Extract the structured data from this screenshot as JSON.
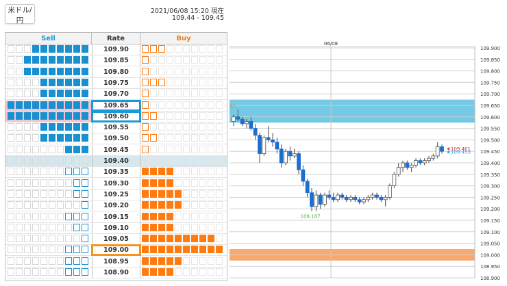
{
  "header": {
    "pair_label": "米ドル/円",
    "timestamp": "2021/06/08 15:20 現在",
    "range": "109.44 - 109.45"
  },
  "order_book": {
    "columns": {
      "sell": "Sell",
      "rate": "Rate",
      "buy": "Buy"
    },
    "rows": [
      {
        "rate": "109.90",
        "sell": 7,
        "buy": 3,
        "sell_open": 0,
        "buy_open": 3
      },
      {
        "rate": "109.85",
        "sell": 8,
        "buy": 1,
        "sell_open": 0,
        "buy_open": 1
      },
      {
        "rate": "109.80",
        "sell": 8,
        "buy": 1,
        "sell_open": 0,
        "buy_open": 1
      },
      {
        "rate": "109.75",
        "sell": 6,
        "buy": 3,
        "sell_open": 0,
        "buy_open": 3
      },
      {
        "rate": "109.70",
        "sell": 6,
        "buy": 1,
        "sell_open": 0,
        "buy_open": 1
      },
      {
        "rate": "109.65",
        "sell": 10,
        "buy": 1,
        "sell_open": 0,
        "buy_open": 1
      },
      {
        "rate": "109.60",
        "sell": 10,
        "buy": 2,
        "sell_open": 0,
        "buy_open": 2
      },
      {
        "rate": "109.55",
        "sell": 6,
        "buy": 1,
        "sell_open": 0,
        "buy_open": 1
      },
      {
        "rate": "109.50",
        "sell": 6,
        "buy": 2,
        "sell_open": 0,
        "buy_open": 2
      },
      {
        "rate": "109.45",
        "sell": 3,
        "buy": 1,
        "sell_open": 0,
        "buy_open": 1
      },
      {
        "rate": "109.40",
        "sell": 0,
        "buy": 0,
        "sell_open": 0,
        "buy_open": 0
      },
      {
        "rate": "109.35",
        "sell": 3,
        "buy": 4,
        "sell_open": 3,
        "buy_open": 0
      },
      {
        "rate": "109.30",
        "sell": 2,
        "buy": 4,
        "sell_open": 2,
        "buy_open": 0
      },
      {
        "rate": "109.25",
        "sell": 2,
        "buy": 5,
        "sell_open": 2,
        "buy_open": 0
      },
      {
        "rate": "109.20",
        "sell": 1,
        "buy": 5,
        "sell_open": 1,
        "buy_open": 0
      },
      {
        "rate": "109.15",
        "sell": 3,
        "buy": 4,
        "sell_open": 3,
        "buy_open": 0
      },
      {
        "rate": "109.10",
        "sell": 2,
        "buy": 4,
        "sell_open": 2,
        "buy_open": 0
      },
      {
        "rate": "109.05",
        "sell": 1,
        "buy": 9,
        "sell_open": 1,
        "buy_open": 0
      },
      {
        "rate": "109.00",
        "sell": 3,
        "buy": 10,
        "sell_open": 3,
        "buy_open": 0
      },
      {
        "rate": "108.95",
        "sell": 3,
        "buy": 5,
        "sell_open": 3,
        "buy_open": 0
      },
      {
        "rate": "108.90",
        "sell": 3,
        "buy": 4,
        "sell_open": 3,
        "buy_open": 0
      }
    ],
    "mid_rate": "109.40",
    "selected_sell_rates": [
      "109.65",
      "109.60"
    ],
    "selected_buy_rate": "109.00",
    "colors": {
      "sell": "#1991d0",
      "buy": "#ff7a0f",
      "mid": "#d6e8ee",
      "pink": "#f2c5cf"
    }
  },
  "chart_data": {
    "type": "candlestick",
    "x_label": "06/08",
    "y_ticks": [
      "109.900",
      "109.850",
      "109.800",
      "109.750",
      "109.700",
      "109.650",
      "109.600",
      "109.550",
      "109.500",
      "109.450",
      "109.400",
      "109.350",
      "109.300",
      "109.250",
      "109.200",
      "109.150",
      "109.100",
      "109.050",
      "109.000",
      "108.950",
      "108.900"
    ],
    "ylim": [
      108.9,
      109.9
    ],
    "bands": [
      {
        "from": 109.575,
        "to": 109.675,
        "color": "#5bbfe2"
      },
      {
        "from": 108.975,
        "to": 109.025,
        "color": "#f89a55"
      }
    ],
    "annotations": {
      "high": "109.487",
      "low": "109.187",
      "ask": "109.461",
      "bid": "109.453"
    },
    "candles": [
      [
        109.58,
        109.61,
        109.56,
        109.6
      ],
      [
        109.6,
        109.63,
        109.58,
        109.59
      ],
      [
        109.59,
        109.6,
        109.56,
        109.57
      ],
      [
        109.57,
        109.59,
        109.55,
        109.58
      ],
      [
        109.58,
        109.6,
        109.54,
        109.55
      ],
      [
        109.55,
        109.57,
        109.5,
        109.52
      ],
      [
        109.52,
        109.53,
        109.4,
        109.44
      ],
      [
        109.44,
        109.52,
        109.43,
        109.51
      ],
      [
        109.51,
        109.56,
        109.49,
        109.5
      ],
      [
        109.5,
        109.53,
        109.47,
        109.49
      ],
      [
        109.49,
        109.51,
        109.44,
        109.46
      ],
      [
        109.46,
        109.48,
        109.38,
        109.4
      ],
      [
        109.4,
        109.46,
        109.39,
        109.45
      ],
      [
        109.45,
        109.47,
        109.41,
        109.43
      ],
      [
        109.43,
        109.46,
        109.42,
        109.44
      ],
      [
        109.44,
        109.45,
        109.35,
        109.37
      ],
      [
        109.37,
        109.39,
        109.3,
        109.32
      ],
      [
        109.32,
        109.33,
        109.25,
        109.27
      ],
      [
        109.27,
        109.29,
        109.19,
        109.21
      ],
      [
        109.21,
        109.28,
        109.19,
        109.26
      ],
      [
        109.26,
        109.27,
        109.2,
        109.22
      ],
      [
        109.22,
        109.27,
        109.21,
        109.26
      ],
      [
        109.26,
        109.28,
        109.24,
        109.25
      ],
      [
        109.25,
        109.27,
        109.23,
        109.24
      ],
      [
        109.24,
        109.27,
        109.23,
        109.26
      ],
      [
        109.26,
        109.27,
        109.24,
        109.25
      ],
      [
        109.25,
        109.26,
        109.23,
        109.24
      ],
      [
        109.24,
        109.26,
        109.23,
        109.25
      ],
      [
        109.25,
        109.26,
        109.23,
        109.24
      ],
      [
        109.24,
        109.25,
        109.22,
        109.23
      ],
      [
        109.23,
        109.25,
        109.22,
        109.24
      ],
      [
        109.24,
        109.26,
        109.23,
        109.25
      ],
      [
        109.25,
        109.27,
        109.24,
        109.26
      ],
      [
        109.26,
        109.27,
        109.24,
        109.25
      ],
      [
        109.25,
        109.26,
        109.23,
        109.24
      ],
      [
        109.24,
        109.26,
        109.21,
        109.25
      ],
      [
        109.25,
        109.31,
        109.24,
        109.3
      ],
      [
        109.3,
        109.36,
        109.29,
        109.35
      ],
      [
        109.35,
        109.4,
        109.34,
        109.38
      ],
      [
        109.38,
        109.41,
        109.36,
        109.4
      ],
      [
        109.4,
        109.41,
        109.37,
        109.38
      ],
      [
        109.38,
        109.4,
        109.36,
        109.39
      ],
      [
        109.39,
        109.42,
        109.38,
        109.41
      ],
      [
        109.41,
        109.42,
        109.39,
        109.4
      ],
      [
        109.4,
        109.42,
        109.39,
        109.41
      ],
      [
        109.41,
        109.43,
        109.4,
        109.42
      ],
      [
        109.42,
        109.44,
        109.41,
        109.43
      ],
      [
        109.43,
        109.49,
        109.42,
        109.47
      ],
      [
        109.47,
        109.48,
        109.44,
        109.45
      ]
    ]
  }
}
